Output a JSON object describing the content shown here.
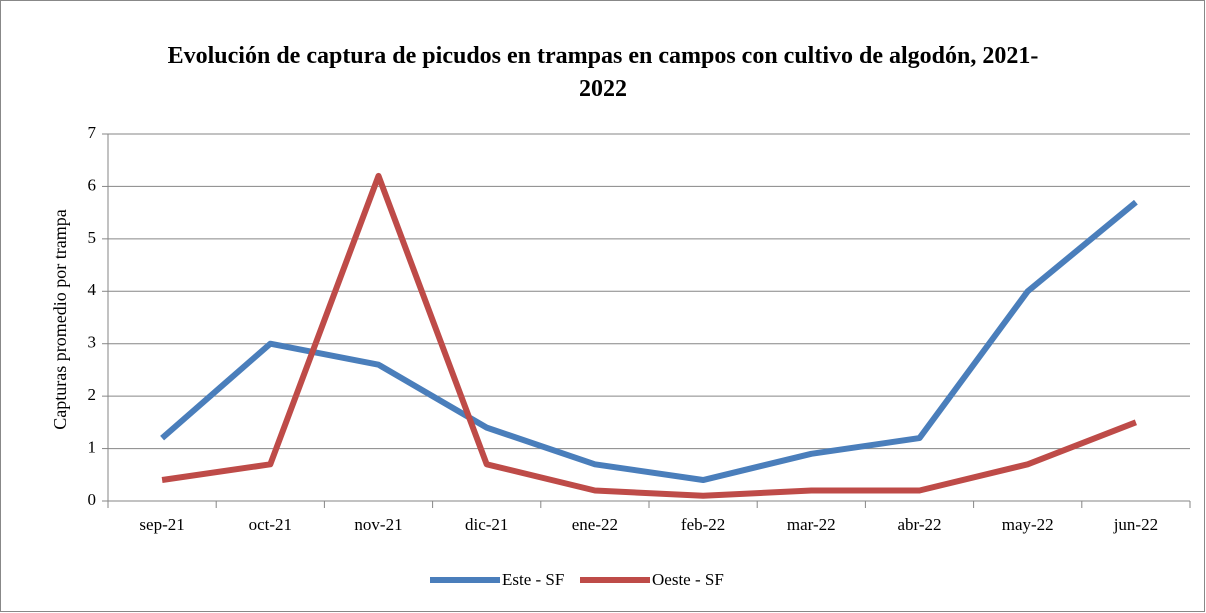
{
  "chart_data": {
    "type": "line",
    "title": "Evolución de captura de picudos en trampas en campos con cultivo de algodón, 2021-2022",
    "ylabel": "Capturas promedio por trampa",
    "categories": [
      "sep-21",
      "oct-21",
      "nov-21",
      "dic-21",
      "ene-22",
      "feb-22",
      "mar-22",
      "abr-22",
      "may-22",
      "jun-22"
    ],
    "series": [
      {
        "name": "Este - SF",
        "color": "#4a7ebb",
        "values": [
          1.2,
          3.0,
          2.6,
          1.4,
          0.7,
          0.4,
          0.9,
          1.2,
          4.0,
          5.7
        ]
      },
      {
        "name": "Oeste - SF",
        "color": "#be4b48",
        "values": [
          0.4,
          0.7,
          6.2,
          0.7,
          0.2,
          0.1,
          0.2,
          0.2,
          0.7,
          1.5
        ]
      }
    ],
    "ylim": [
      0,
      7
    ],
    "yticks": [
      0,
      1,
      2,
      3,
      4,
      5,
      6,
      7
    ],
    "grid": true,
    "legend": "bottom"
  }
}
